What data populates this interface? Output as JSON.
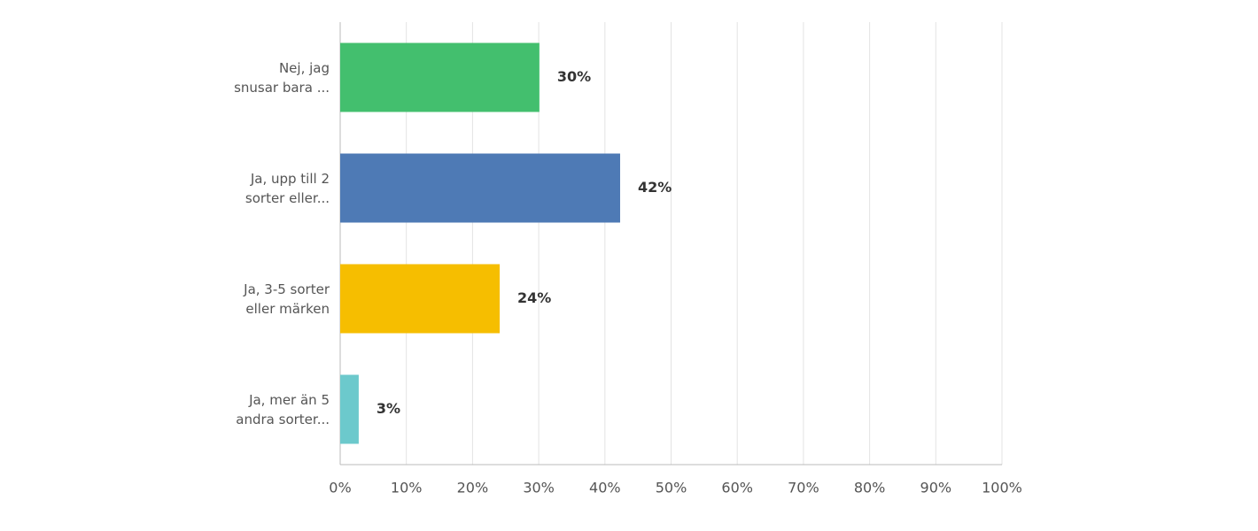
{
  "chart_data": {
    "type": "hbar",
    "categories": [
      "Nej, jag\nsnusar bara ...",
      "Ja, upp till 2\nsorter eller...",
      "Ja, 3-5 sorter\neller märken",
      "Ja, mer än 5\nandra sorter..."
    ],
    "values": [
      30.1,
      42.3,
      24.1,
      2.8
    ],
    "value_labels": [
      "30%",
      "42%",
      "24%",
      "3%"
    ],
    "colors": [
      "#43bf6e",
      "#4e7ab5",
      "#f6be00",
      "#6cc9cc"
    ],
    "xlim": [
      0,
      100
    ],
    "xticks": [
      {
        "value": 0,
        "label": "0%"
      },
      {
        "value": 10,
        "label": "10%"
      },
      {
        "value": 20,
        "label": "20%"
      },
      {
        "value": 30,
        "label": "30%"
      },
      {
        "value": 40,
        "label": "40%"
      },
      {
        "value": 50,
        "label": "50%"
      },
      {
        "value": 60,
        "label": "60%"
      },
      {
        "value": 70,
        "label": "70%"
      },
      {
        "value": 80,
        "label": "80%"
      },
      {
        "value": 90,
        "label": "90%"
      },
      {
        "value": 100,
        "label": "100%"
      }
    ],
    "grid": true
  }
}
